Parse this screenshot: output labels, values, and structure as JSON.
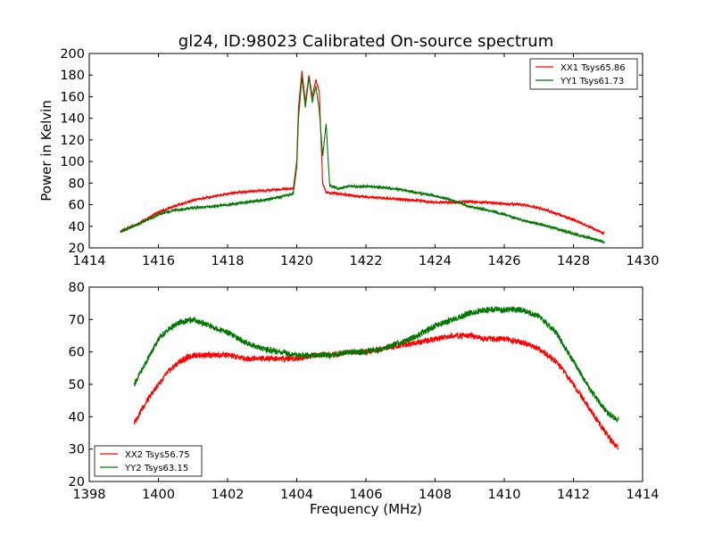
{
  "chart_data": [
    {
      "type": "line",
      "title": "gl24, ID:98023 Calibrated On-source spectrum",
      "xlabel": "",
      "ylabel": "Power in Kelvin",
      "xlim": [
        1414,
        1430
      ],
      "ylim": [
        20,
        200
      ],
      "xticks": [
        1414,
        1416,
        1418,
        1420,
        1422,
        1424,
        1426,
        1428,
        1430
      ],
      "yticks": [
        20,
        40,
        60,
        80,
        100,
        120,
        140,
        160,
        180,
        200
      ],
      "legend": "top-right",
      "grid": false,
      "series": [
        {
          "name": "XX1 Tsys65.86",
          "color": "#ff0000",
          "x": [
            1414.9,
            1415.5,
            1416.0,
            1416.5,
            1417.0,
            1417.5,
            1418.0,
            1418.5,
            1419.0,
            1419.5,
            1419.9,
            1420.0,
            1420.05,
            1420.15,
            1420.25,
            1420.35,
            1420.45,
            1420.55,
            1420.65,
            1420.75,
            1420.85,
            1420.95,
            1421.2,
            1421.5,
            1422.0,
            1422.5,
            1423.0,
            1423.5,
            1424.0,
            1424.5,
            1425.0,
            1425.5,
            1426.0,
            1426.5,
            1427.0,
            1427.5,
            1428.0,
            1428.5,
            1428.9
          ],
          "y": [
            35,
            44,
            53,
            59,
            64,
            67,
            70,
            72,
            73,
            74,
            75,
            100,
            150,
            184,
            155,
            180,
            160,
            176,
            165,
            80,
            72,
            71,
            70,
            69,
            67,
            66,
            65,
            64,
            62,
            62,
            63,
            62,
            61,
            60,
            57,
            52,
            46,
            39,
            33
          ]
        },
        {
          "name": "YY1 Tsys61.73",
          "color": "#007700",
          "x": [
            1414.9,
            1415.5,
            1416.0,
            1416.5,
            1417.0,
            1417.5,
            1418.0,
            1418.5,
            1419.0,
            1419.5,
            1419.9,
            1420.0,
            1420.05,
            1420.15,
            1420.25,
            1420.35,
            1420.45,
            1420.55,
            1420.65,
            1420.75,
            1420.85,
            1420.95,
            1421.2,
            1421.5,
            1422.0,
            1422.5,
            1423.0,
            1423.5,
            1424.0,
            1424.5,
            1425.0,
            1425.5,
            1426.0,
            1426.5,
            1427.0,
            1427.5,
            1428.0,
            1428.5,
            1428.9
          ],
          "y": [
            35,
            43,
            51,
            55,
            57,
            58,
            60,
            62,
            64,
            67,
            70,
            95,
            140,
            178,
            150,
            178,
            155,
            170,
            148,
            105,
            135,
            78,
            75,
            77,
            77,
            76,
            74,
            71,
            68,
            64,
            58,
            55,
            51,
            46,
            42,
            38,
            33,
            29,
            25
          ]
        }
      ]
    },
    {
      "type": "line",
      "title": "",
      "xlabel": "Frequency (MHz)",
      "ylabel": "",
      "xlim": [
        1398,
        1414
      ],
      "ylim": [
        20,
        80
      ],
      "xticks": [
        1398,
        1400,
        1402,
        1404,
        1406,
        1408,
        1410,
        1412,
        1414
      ],
      "yticks": [
        20,
        30,
        40,
        50,
        60,
        70,
        80
      ],
      "legend": "bottom-left",
      "grid": false,
      "series": [
        {
          "name": "XX2 Tsys56.75",
          "color": "#ff0000",
          "x": [
            1399.3,
            1399.5,
            1399.8,
            1400.0,
            1400.3,
            1400.6,
            1401.0,
            1401.5,
            1402.0,
            1402.5,
            1403.0,
            1403.5,
            1404.0,
            1404.5,
            1405.0,
            1405.5,
            1406.0,
            1406.5,
            1407.0,
            1407.5,
            1408.0,
            1408.5,
            1409.0,
            1409.5,
            1410.0,
            1410.5,
            1411.0,
            1411.5,
            1412.0,
            1412.5,
            1413.0,
            1413.3
          ],
          "y": [
            38,
            42,
            47,
            50,
            54,
            57,
            59,
            59,
            59,
            58,
            58,
            58,
            58,
            59,
            59,
            60,
            60,
            61,
            62,
            63,
            64,
            65,
            65,
            64,
            64,
            63,
            61,
            57,
            50,
            42,
            34,
            30
          ]
        },
        {
          "name": "YY2 Tsys63.15",
          "color": "#007700",
          "x": [
            1399.3,
            1399.5,
            1399.8,
            1400.0,
            1400.3,
            1400.6,
            1401.0,
            1401.5,
            1402.0,
            1402.5,
            1403.0,
            1403.5,
            1404.0,
            1404.5,
            1405.0,
            1405.5,
            1406.0,
            1406.5,
            1407.0,
            1407.5,
            1408.0,
            1408.5,
            1409.0,
            1409.5,
            1410.0,
            1410.5,
            1411.0,
            1411.5,
            1412.0,
            1412.5,
            1413.0,
            1413.3
          ],
          "y": [
            50,
            54,
            60,
            64,
            67,
            69,
            70,
            68,
            66,
            63,
            61,
            60,
            59,
            59,
            59,
            60,
            60,
            61,
            63,
            65,
            68,
            70,
            72,
            73,
            73,
            73,
            71,
            66,
            57,
            48,
            41,
            39
          ]
        }
      ]
    }
  ]
}
